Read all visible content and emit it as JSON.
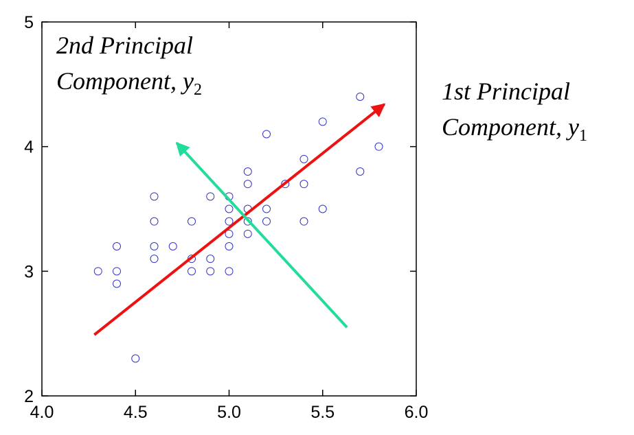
{
  "chart_data": {
    "type": "scatter",
    "title": "",
    "xlabel": "",
    "ylabel": "",
    "xlim": [
      4.0,
      6.0
    ],
    "ylim": [
      2,
      5
    ],
    "x_ticks": [
      4.0,
      4.5,
      5.0,
      5.5,
      6.0
    ],
    "x_tick_labels": [
      "4.0",
      "4.5",
      "5.0",
      "5.5",
      "6.0"
    ],
    "y_ticks": [
      2,
      3,
      4,
      5
    ],
    "y_tick_labels": [
      "2",
      "3",
      "4",
      "5"
    ],
    "grid": false,
    "colors": {
      "points": "#3333cc",
      "first_pc_arrow": "#ee1111",
      "second_pc_arrow": "#22dd99"
    },
    "points": [
      {
        "x": 4.3,
        "y": 3.0
      },
      {
        "x": 4.4,
        "y": 3.2
      },
      {
        "x": 4.4,
        "y": 3.0
      },
      {
        "x": 4.4,
        "y": 2.9
      },
      {
        "x": 4.5,
        "y": 2.3
      },
      {
        "x": 4.6,
        "y": 3.6
      },
      {
        "x": 4.6,
        "y": 3.4
      },
      {
        "x": 4.6,
        "y": 3.2
      },
      {
        "x": 4.6,
        "y": 3.1
      },
      {
        "x": 4.7,
        "y": 3.2
      },
      {
        "x": 4.8,
        "y": 3.4
      },
      {
        "x": 4.8,
        "y": 3.1
      },
      {
        "x": 4.8,
        "y": 3.0
      },
      {
        "x": 4.9,
        "y": 3.6
      },
      {
        "x": 4.9,
        "y": 3.1
      },
      {
        "x": 4.9,
        "y": 3.0
      },
      {
        "x": 5.0,
        "y": 3.6
      },
      {
        "x": 5.0,
        "y": 3.5
      },
      {
        "x": 5.0,
        "y": 3.4
      },
      {
        "x": 5.0,
        "y": 3.3
      },
      {
        "x": 5.0,
        "y": 3.2
      },
      {
        "x": 5.0,
        "y": 3.0
      },
      {
        "x": 5.1,
        "y": 3.8
      },
      {
        "x": 5.1,
        "y": 3.7
      },
      {
        "x": 5.1,
        "y": 3.5
      },
      {
        "x": 5.1,
        "y": 3.4
      },
      {
        "x": 5.1,
        "y": 3.3
      },
      {
        "x": 5.2,
        "y": 4.1
      },
      {
        "x": 5.2,
        "y": 3.5
      },
      {
        "x": 5.2,
        "y": 3.4
      },
      {
        "x": 5.3,
        "y": 3.7
      },
      {
        "x": 5.4,
        "y": 3.9
      },
      {
        "x": 5.4,
        "y": 3.7
      },
      {
        "x": 5.4,
        "y": 3.4
      },
      {
        "x": 5.5,
        "y": 4.2
      },
      {
        "x": 5.5,
        "y": 3.5
      },
      {
        "x": 5.7,
        "y": 4.4
      },
      {
        "x": 5.7,
        "y": 3.8
      },
      {
        "x": 5.8,
        "y": 4.0
      }
    ],
    "arrows": [
      {
        "name": "1st Principal Component",
        "from": [
          4.28,
          2.49
        ],
        "to": [
          5.83,
          4.34
        ]
      },
      {
        "name": "2nd Principal Component",
        "from": [
          5.63,
          2.55
        ],
        "to": [
          4.72,
          4.03
        ]
      }
    ],
    "annotations": {
      "second_pc": {
        "line1": "2nd Principal",
        "line2": "Component, y",
        "sub": "2"
      },
      "first_pc": {
        "line1": "1st Principal",
        "line2": "Component, y",
        "sub": "1"
      }
    }
  }
}
